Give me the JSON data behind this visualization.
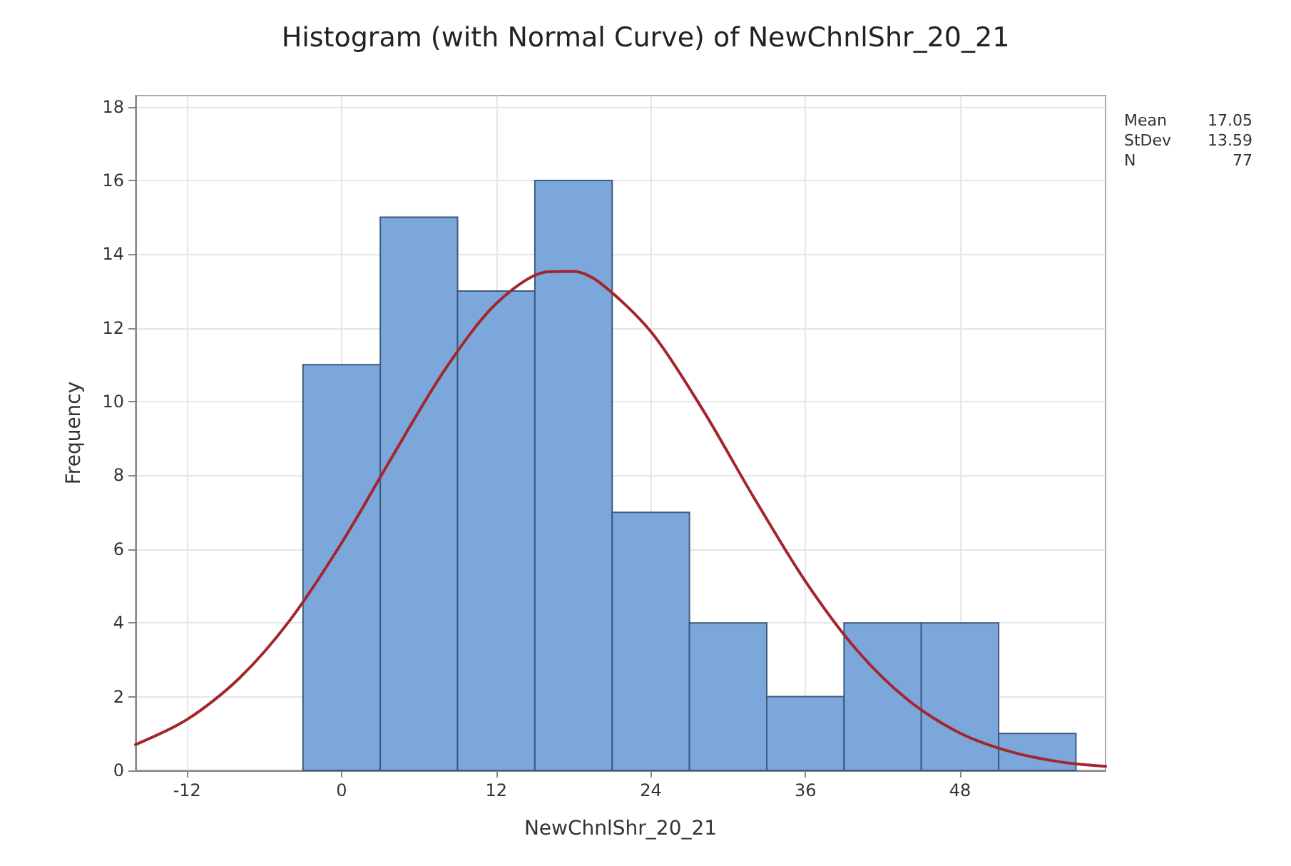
{
  "chart_data": {
    "type": "histogram",
    "title": "Histogram (with Normal Curve) of NewChnlShr_20_21",
    "xlabel": "NewChnlShr_20_21",
    "ylabel": "Frequency",
    "bins": [
      -3,
      3,
      9,
      15,
      21,
      27,
      33,
      39,
      45,
      51,
      57
    ],
    "values": [
      11,
      15,
      13,
      16,
      7,
      4,
      2,
      4,
      4,
      1
    ],
    "color": "#7ba7da",
    "series": [
      {
        "type": "line",
        "color": "#a3262e",
        "x": [
          -16,
          -12,
          -8,
          -4,
          0,
          4,
          8,
          12,
          16,
          18,
          20,
          24,
          28,
          32,
          36,
          40,
          44,
          48,
          52,
          56,
          59.3
        ],
        "values": [
          0.7,
          1.38,
          2.48,
          4.08,
          6.17,
          8.55,
          10.86,
          12.66,
          13.52,
          13.53,
          13.24,
          11.9,
          9.8,
          7.4,
          5.13,
          3.26,
          1.9,
          1.01,
          0.5,
          0.22,
          0.11
        ]
      }
    ],
    "xlim": [
      -16,
      59.3
    ],
    "xticks": [
      -12,
      0,
      12,
      24,
      36,
      48
    ],
    "ylim": [
      0,
      18.3
    ],
    "yticks": [
      0,
      2,
      4,
      6,
      8,
      10,
      12,
      14,
      16,
      18
    ],
    "grid": true,
    "marker": "none",
    "annotations": [
      "Mean 17.05",
      "StDev 13.59",
      "N 77"
    ]
  }
}
